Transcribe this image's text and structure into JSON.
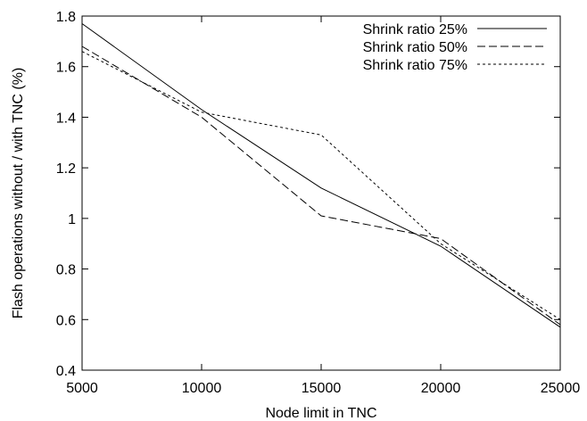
{
  "chart_data": {
    "type": "line",
    "title": "",
    "xlabel": "Node limit in TNC",
    "ylabel": "Flash operations without / with TNC (%)",
    "x": [
      5000,
      10000,
      15000,
      20000,
      25000
    ],
    "xlim": [
      5000,
      25000
    ],
    "ylim": [
      0.4,
      1.8
    ],
    "xticks": [
      "5000",
      "10000",
      "15000",
      "20000",
      "25000"
    ],
    "yticks": [
      "0.4",
      "0.6",
      "0.8",
      "1",
      "1.2",
      "1.4",
      "1.6",
      "1.8"
    ],
    "grid": false,
    "legend_position": "top-right",
    "series": [
      {
        "name": "Shrink ratio 25%",
        "values": [
          1.77,
          1.43,
          1.12,
          0.89,
          0.57
        ],
        "dash": "solid",
        "color": "#000000"
      },
      {
        "name": "Shrink ratio 50%",
        "values": [
          1.68,
          1.4,
          1.01,
          0.92,
          0.58
        ],
        "dash": "long-dash",
        "color": "#000000"
      },
      {
        "name": "Shrink ratio 75%",
        "values": [
          1.66,
          1.42,
          1.33,
          0.9,
          0.6
        ],
        "dash": "short-dash",
        "color": "#000000"
      }
    ]
  }
}
